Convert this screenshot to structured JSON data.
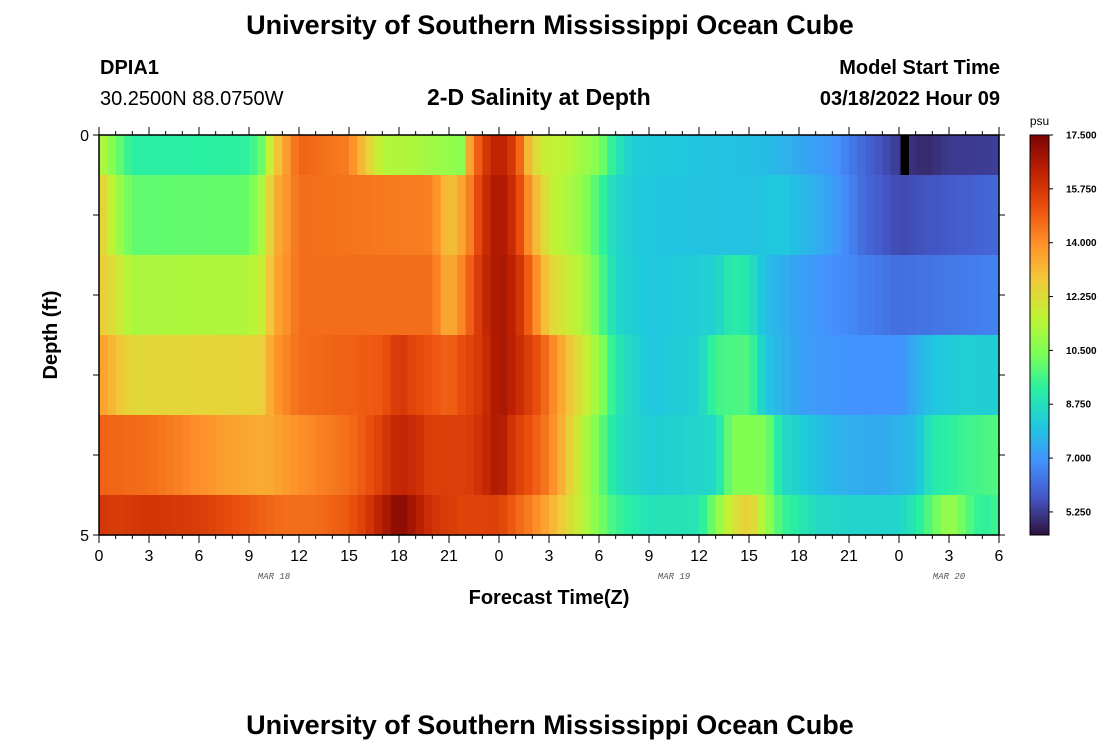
{
  "page": {
    "title_top": "University of Southern Mississippi Ocean Cube",
    "title_bottom": "University of Southern Mississippi Ocean Cube",
    "station_id": "DPIA1",
    "coordinates": "30.2500N  88.0750W",
    "plot_title": "2-D Salinity at Depth",
    "model_start_label": "Model Start Time",
    "model_start_value": "03/18/2022 Hour 09"
  },
  "chart_data": {
    "type": "heatmap",
    "title": "2-D Salinity at Depth",
    "xlabel": "Forecast Time(Z)",
    "ylabel": "Depth (ft)",
    "x_tick_labels": [
      "0",
      "3",
      "6",
      "9",
      "12",
      "15",
      "18",
      "21",
      "0",
      "3",
      "6",
      "9",
      "12",
      "15",
      "18",
      "21",
      "0",
      "3",
      "6"
    ],
    "date_labels": [
      {
        "label": "MAR 18",
        "hour": 10.5
      },
      {
        "label": "MAR 19",
        "hour": 34.5
      },
      {
        "label": "MAR 20",
        "hour": 51
      }
    ],
    "x_range_hours": [
      0,
      54
    ],
    "y_tick_labels": [
      "0",
      "5"
    ],
    "y_range_ft": [
      0,
      5
    ],
    "depth_bins": [
      [
        0,
        0.5
      ],
      [
        0.5,
        1.5
      ],
      [
        1.5,
        2.5
      ],
      [
        2.5,
        3.5
      ],
      [
        3.5,
        4.5
      ],
      [
        4.5,
        5
      ]
    ],
    "colorbar": {
      "unit": "psu",
      "min": 4.5,
      "max": 17.5,
      "tick_labels": [
        "17.500",
        "15.750",
        "14.000",
        "12.250",
        "10.500",
        "8.750",
        "7.000",
        "5.250"
      ],
      "colors": [
        "#30123b",
        "#4454c4",
        "#4490fe",
        "#1fc8de",
        "#29efa2",
        "#7dff56",
        "#c1f334",
        "#f1ca3a",
        "#fe922a",
        "#ea4f0d",
        "#be2102",
        "#7a0403"
      ]
    },
    "salinity_psu": [
      {
        "depth": "0-0.5",
        "knots": [
          [
            0,
            11.5
          ],
          [
            1,
            10.3
          ],
          [
            2,
            9.2
          ],
          [
            5,
            9.2
          ],
          [
            9,
            9.3
          ],
          [
            9.8,
            10.2
          ],
          [
            10.5,
            12.5
          ],
          [
            11,
            13.4
          ],
          [
            12,
            14.8
          ],
          [
            15,
            14.3
          ],
          [
            16,
            12.8
          ],
          [
            17,
            11.4
          ],
          [
            19,
            11.2
          ],
          [
            21,
            10.8
          ],
          [
            21.8,
            10.6
          ],
          [
            22.2,
            13.5
          ],
          [
            23,
            15.5
          ],
          [
            24,
            16.5
          ],
          [
            25,
            15.5
          ],
          [
            25.8,
            13
          ],
          [
            26.5,
            11.8
          ],
          [
            28,
            11.5
          ],
          [
            30,
            10.5
          ],
          [
            31,
            9
          ],
          [
            32,
            8.2
          ],
          [
            40,
            7.8
          ],
          [
            44,
            7
          ],
          [
            46,
            6
          ],
          [
            48,
            5.2
          ],
          [
            49.5,
            4.9
          ],
          [
            51,
            5.2
          ],
          [
            54,
            5.3
          ]
        ],
        "block": {
          "start": 48.1,
          "end": 48.6,
          "color": "#000000"
        }
      },
      {
        "depth": "0.5-1.5",
        "knots": [
          [
            0,
            12.8
          ],
          [
            1,
            11.2
          ],
          [
            2,
            10
          ],
          [
            9,
            10.1
          ],
          [
            9.8,
            11.3
          ],
          [
            10.5,
            13.2
          ],
          [
            12,
            14.6
          ],
          [
            20,
            14.3
          ],
          [
            21,
            12.8
          ],
          [
            22,
            13.8
          ],
          [
            23,
            15.8
          ],
          [
            24,
            16.8
          ],
          [
            25,
            15.8
          ],
          [
            26,
            13.5
          ],
          [
            27,
            11.8
          ],
          [
            29,
            10.8
          ],
          [
            30,
            9.6
          ],
          [
            31,
            8.4
          ],
          [
            33,
            8
          ],
          [
            39,
            7.9
          ],
          [
            41,
            8.1
          ],
          [
            44,
            7.2
          ],
          [
            46,
            6.1
          ],
          [
            48,
            5.5
          ],
          [
            50,
            5.7
          ],
          [
            54,
            6.1
          ]
        ]
      },
      {
        "depth": "1.5-2.5",
        "knots": [
          [
            0,
            12.8
          ],
          [
            1,
            12.1
          ],
          [
            2,
            11.2
          ],
          [
            9,
            11.3
          ],
          [
            9.8,
            11.8
          ],
          [
            10.5,
            13.4
          ],
          [
            12,
            14.6
          ],
          [
            20,
            14.6
          ],
          [
            21,
            13.2
          ],
          [
            22,
            14.5
          ],
          [
            23,
            16
          ],
          [
            24,
            16.8
          ],
          [
            25,
            16.2
          ],
          [
            26,
            14.5
          ],
          [
            27,
            12.5
          ],
          [
            29,
            11.3
          ],
          [
            30,
            10
          ],
          [
            31,
            8.5
          ],
          [
            33,
            8
          ],
          [
            37,
            8.3
          ],
          [
            38,
            9.2
          ],
          [
            39,
            8.9
          ],
          [
            40,
            7.8
          ],
          [
            42,
            7.2
          ],
          [
            45,
            6.7
          ],
          [
            48,
            6.2
          ],
          [
            51,
            6.4
          ],
          [
            54,
            6.6
          ]
        ]
      },
      {
        "depth": "2.5-3.5",
        "knots": [
          [
            0,
            13.8
          ],
          [
            1,
            13
          ],
          [
            2,
            12.4
          ],
          [
            9,
            12.5
          ],
          [
            9.8,
            12.6
          ],
          [
            10.5,
            13.8
          ],
          [
            12,
            14.6
          ],
          [
            17,
            15
          ],
          [
            18,
            15.8
          ],
          [
            19,
            15.3
          ],
          [
            21,
            14.8
          ],
          [
            23,
            15.8
          ],
          [
            24,
            16.8
          ],
          [
            25,
            16.2
          ],
          [
            26.5,
            15
          ],
          [
            28,
            13.2
          ],
          [
            29,
            12
          ],
          [
            30,
            10.8
          ],
          [
            31,
            9
          ],
          [
            33,
            8
          ],
          [
            36,
            8.3
          ],
          [
            37,
            9.6
          ],
          [
            39,
            9.8
          ],
          [
            40,
            8
          ],
          [
            42,
            7.2
          ],
          [
            45,
            6.9
          ],
          [
            48,
            6.9
          ],
          [
            50,
            8
          ],
          [
            52,
            8.3
          ],
          [
            54,
            8.2
          ]
        ]
      },
      {
        "depth": "3.5-4.5",
        "knots": [
          [
            0,
            14.8
          ],
          [
            3,
            14.6
          ],
          [
            5,
            14.2
          ],
          [
            8,
            13.6
          ],
          [
            10,
            13.4
          ],
          [
            12,
            14
          ],
          [
            15,
            14.6
          ],
          [
            16,
            15
          ],
          [
            17,
            15.6
          ],
          [
            18,
            16.3
          ],
          [
            19,
            16
          ],
          [
            20,
            15.5
          ],
          [
            21,
            15.6
          ],
          [
            22,
            15.5
          ],
          [
            23,
            16
          ],
          [
            24,
            16.7
          ],
          [
            25,
            15.6
          ],
          [
            26,
            15
          ],
          [
            27,
            14.3
          ],
          [
            28,
            13
          ],
          [
            29,
            11.5
          ],
          [
            30,
            10.2
          ],
          [
            31,
            8.8
          ],
          [
            33,
            8.2
          ],
          [
            37,
            8.5
          ],
          [
            38,
            10.5
          ],
          [
            40,
            10.5
          ],
          [
            41,
            8.6
          ],
          [
            43,
            7.9
          ],
          [
            45,
            7.5
          ],
          [
            47,
            7.4
          ],
          [
            49,
            7.8
          ],
          [
            50,
            9
          ],
          [
            52,
            9.5
          ],
          [
            54,
            9.8
          ]
        ]
      },
      {
        "depth": "4.5-5",
        "knots": [
          [
            0,
            15.8
          ],
          [
            1,
            15.6
          ],
          [
            3,
            15.8
          ],
          [
            6,
            15.6
          ],
          [
            9,
            15
          ],
          [
            11,
            14.6
          ],
          [
            13,
            14.6
          ],
          [
            15,
            15
          ],
          [
            16,
            15.6
          ],
          [
            17,
            16.5
          ],
          [
            18,
            17.3
          ],
          [
            19,
            16.6
          ],
          [
            20,
            15.8
          ],
          [
            22,
            15.4
          ],
          [
            24,
            15.5
          ],
          [
            25,
            14.8
          ],
          [
            26,
            14.2
          ],
          [
            27,
            13.4
          ],
          [
            28,
            12.5
          ],
          [
            29,
            11.5
          ],
          [
            30,
            10.4
          ],
          [
            31,
            9.5
          ],
          [
            33,
            8.8
          ],
          [
            36,
            8.9
          ],
          [
            37,
            10.5
          ],
          [
            38,
            12
          ],
          [
            39,
            12.7
          ],
          [
            40,
            11
          ],
          [
            41,
            9.5
          ],
          [
            43,
            8.6
          ],
          [
            45,
            8.4
          ],
          [
            48,
            8.4
          ],
          [
            49,
            9
          ],
          [
            50,
            10
          ],
          [
            51,
            11
          ],
          [
            52,
            10
          ],
          [
            53,
            9.2
          ],
          [
            54,
            9.6
          ]
        ]
      }
    ]
  }
}
